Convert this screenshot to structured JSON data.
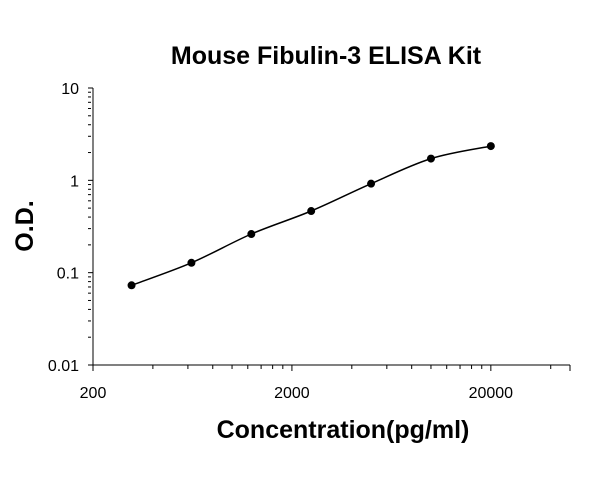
{
  "chart_data": {
    "type": "scatter",
    "title": "Mouse Fibulin-3 ELISA Kit",
    "xlabel": "Concentration(pg/ml)",
    "ylabel": "O.D.",
    "x_scale": "log",
    "y_scale": "log",
    "xlim": [
      200,
      50000
    ],
    "ylim": [
      0.01,
      10
    ],
    "x_ticks": [
      "200",
      "2000",
      "20000"
    ],
    "y_ticks": [
      "10",
      "1",
      "0.1",
      "0.01"
    ],
    "grid": false,
    "legend": "none",
    "series": [
      {
        "x": [
          312.5,
          625,
          1250,
          2500,
          5000,
          10000,
          20000
        ],
        "y": [
          0.073,
          0.128,
          0.262,
          0.465,
          0.92,
          1.72,
          2.35
        ],
        "marker_color": "#000000",
        "line": "smooth"
      }
    ]
  }
}
